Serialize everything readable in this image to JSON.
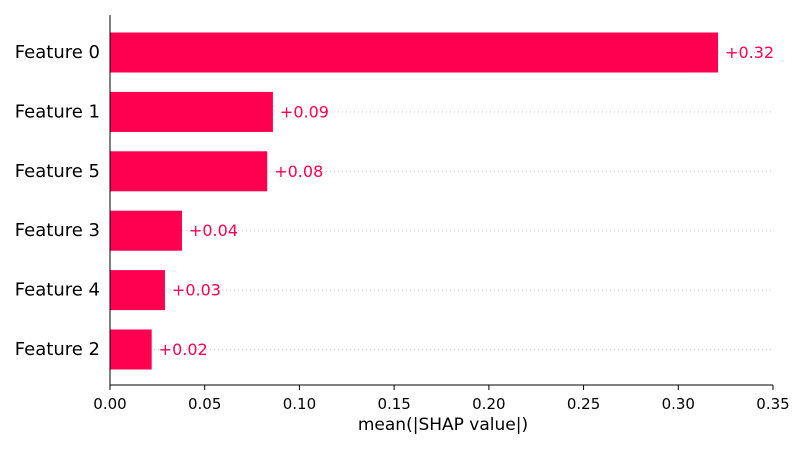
{
  "chart_data": {
    "type": "bar",
    "orientation": "horizontal",
    "categories": [
      "Feature 0",
      "Feature 1",
      "Feature 5",
      "Feature 3",
      "Feature 4",
      "Feature 2"
    ],
    "values": [
      0.321,
      0.086,
      0.083,
      0.038,
      0.029,
      0.022
    ],
    "data_labels": [
      "+0.32",
      "+0.09",
      "+0.08",
      "+0.04",
      "+0.03",
      "+0.02"
    ],
    "xlabel": "mean(|SHAP value|)",
    "ylabel": "",
    "title": "",
    "xlim": [
      0.0,
      0.35
    ],
    "xticks": [
      0.0,
      0.05,
      0.1,
      0.15,
      0.2,
      0.25,
      0.3,
      0.35
    ],
    "xtick_labels": [
      "0.00",
      "0.05",
      "0.10",
      "0.15",
      "0.20",
      "0.25",
      "0.30",
      "0.35"
    ],
    "grid": "horizontal dotted guide lines per row",
    "bar_color": "#ff0051",
    "label_color": "#ff0051",
    "legend": "none"
  }
}
